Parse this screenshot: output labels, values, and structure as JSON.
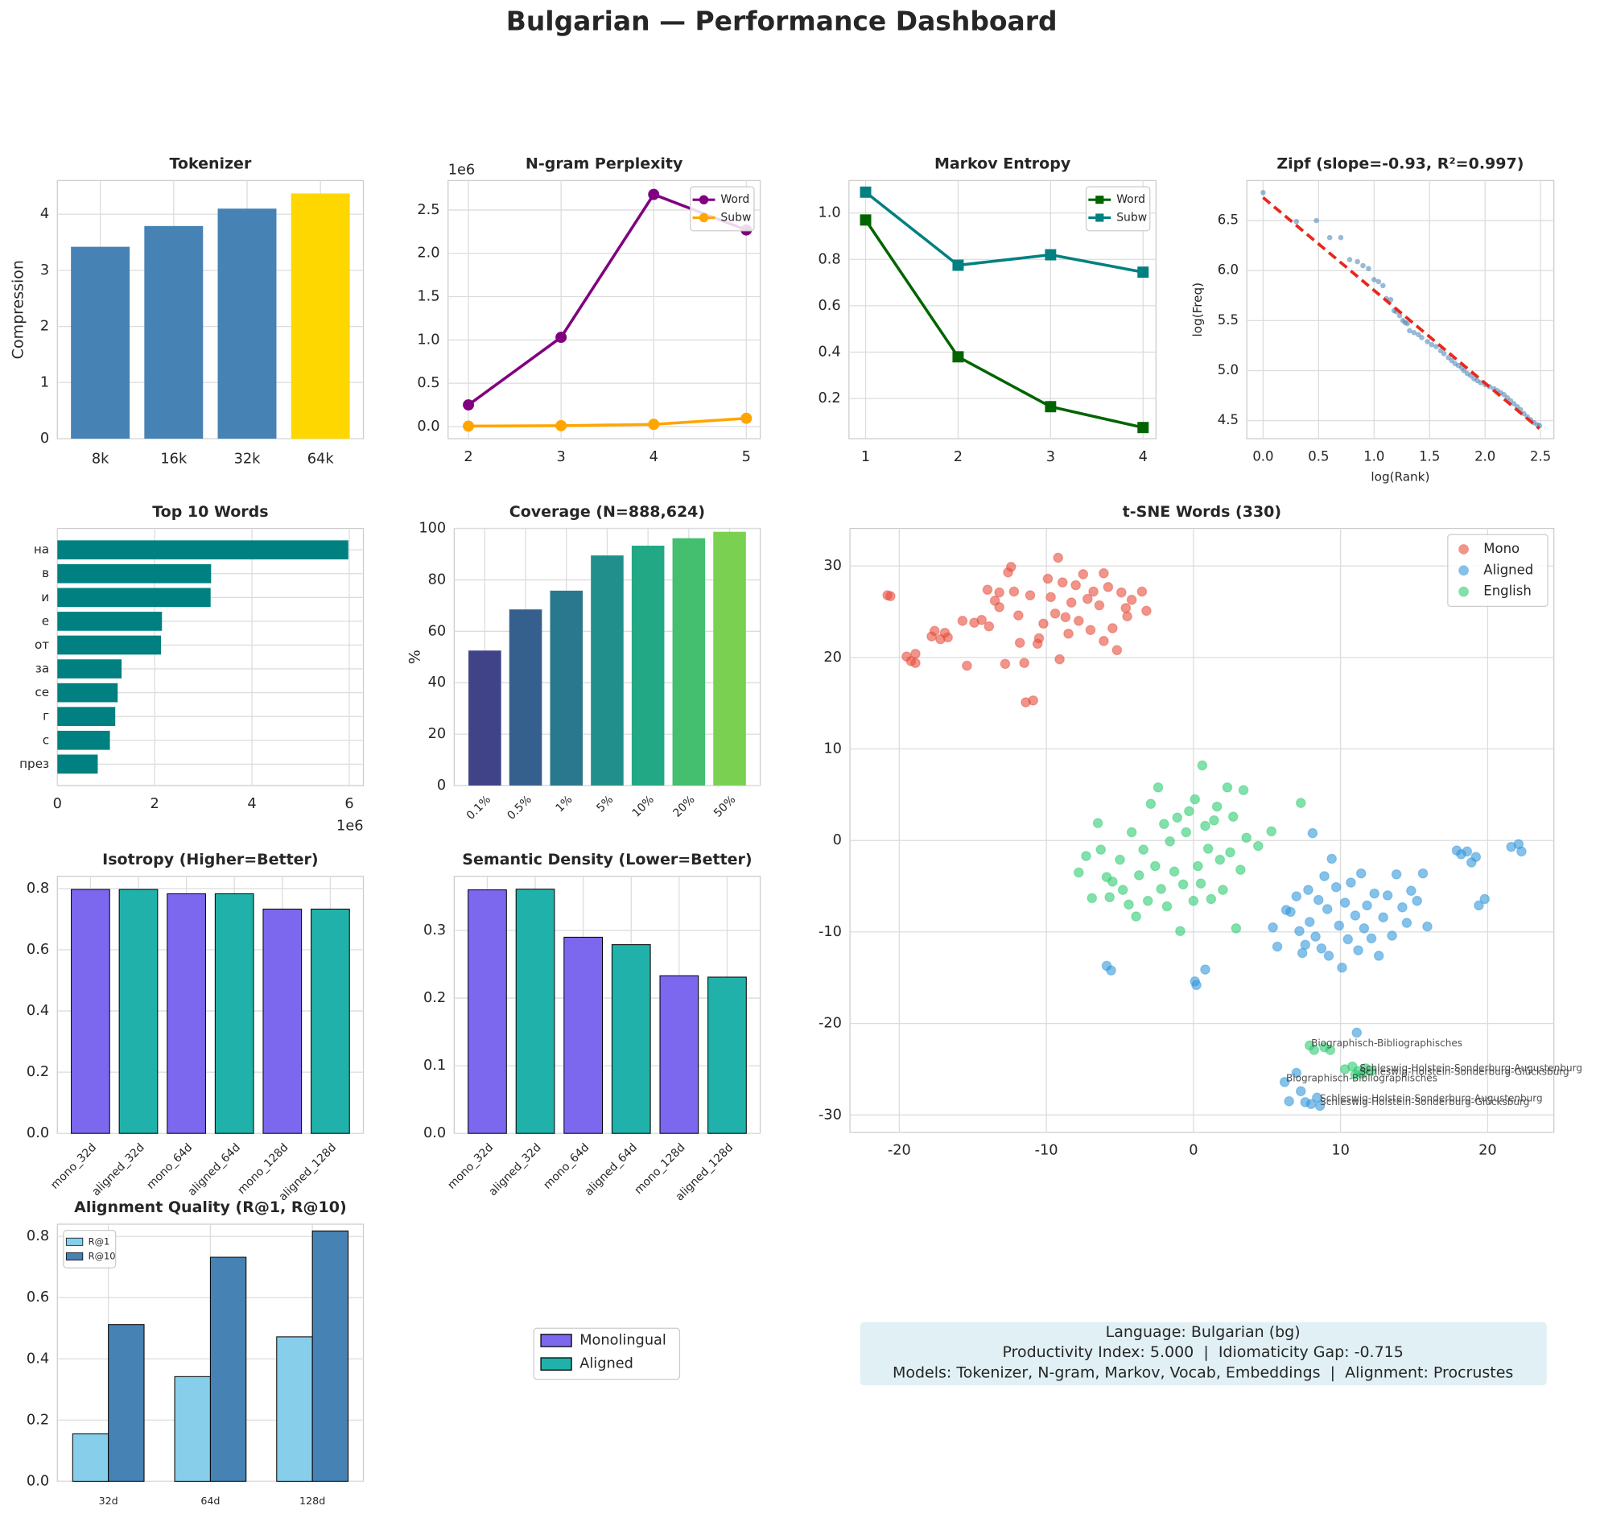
{
  "title": "Bulgarian — Performance Dashboard",
  "chart_data": [
    {
      "type": "bar",
      "title": "Tokenizer",
      "ylabel": "Compression",
      "categories": [
        "8k",
        "16k",
        "32k",
        "64k"
      ],
      "values": [
        3.42,
        3.79,
        4.1,
        4.37
      ],
      "colors": [
        "#4682b4",
        "#4682b4",
        "#4682b4",
        "#ffd700"
      ],
      "ylim": [
        0,
        4.6
      ],
      "yticks": [
        0,
        1,
        2,
        3,
        4
      ],
      "grid": true
    },
    {
      "type": "line",
      "title": "N-gram Perplexity",
      "x": [
        2,
        3,
        4,
        5
      ],
      "xlim": [
        1.78,
        5.15
      ],
      "xticks": [
        2,
        3,
        4,
        5
      ],
      "ylim": [
        -140000,
        2840000
      ],
      "yticks": [
        {
          "value": 0,
          "label": "0.0"
        },
        {
          "value": 500000,
          "label": "0.5"
        },
        {
          "value": 1000000,
          "label": "1.0"
        },
        {
          "value": 1500000,
          "label": "1.5"
        },
        {
          "value": 2000000,
          "label": "2.0"
        },
        {
          "value": 2500000,
          "label": "2.5"
        }
      ],
      "y_offset_label": "1e6",
      "grid": true,
      "legend": "upper right",
      "marker": "circle",
      "series": [
        {
          "name": "Word",
          "color": "#800080",
          "values": [
            250000,
            1030000,
            2680000,
            2270000
          ]
        },
        {
          "name": "Subw",
          "color": "#ffa500",
          "values": [
            5000,
            10000,
            25000,
            95000
          ]
        }
      ]
    },
    {
      "type": "line",
      "title": "Markov Entropy",
      "x": [
        1,
        2,
        3,
        4
      ],
      "xlim": [
        0.82,
        4.14
      ],
      "xticks": [
        1,
        2,
        3,
        4
      ],
      "ylim": [
        0.027,
        1.14
      ],
      "yticks": [
        0.2,
        0.4,
        0.6,
        0.8,
        {
          "value": 1,
          "label": "1.0"
        }
      ],
      "grid": true,
      "legend": "upper right",
      "marker": "square",
      "series": [
        {
          "name": "Word",
          "color": "#006400",
          "values": [
            0.97,
            0.38,
            0.165,
            0.075
          ]
        },
        {
          "name": "Subw",
          "color": "#008080",
          "values": [
            1.09,
            0.775,
            0.82,
            0.745
          ]
        }
      ]
    },
    {
      "type": "scatter",
      "title": "Zipf (slope=-0.93, R²=0.997)",
      "xlabel": "log(Rank)",
      "ylabel": "log(Freq)",
      "xlim": [
        -0.147,
        2.62
      ],
      "ylim": [
        4.32,
        6.9
      ],
      "xticks": [
        {
          "value": 0,
          "label": "0.0"
        },
        0.5,
        {
          "value": 1,
          "label": "1.0"
        },
        1.5,
        {
          "value": 2,
          "label": "2.0"
        },
        2.5
      ],
      "yticks": [
        4.5,
        {
          "value": 5,
          "label": "5.0"
        },
        5.5,
        {
          "value": 6,
          "label": "6.0"
        },
        6.5
      ],
      "grid": true,
      "color": "#4682b4",
      "x": [
        0,
        0.3,
        0.48,
        0.6,
        0.7,
        0.78,
        0.85,
        0.9,
        0.95,
        1.0,
        1.04,
        1.08,
        1.11,
        1.15,
        1.18,
        1.2,
        1.23,
        1.26,
        1.28,
        1.3,
        1.32,
        1.36,
        1.4,
        1.43,
        1.48,
        1.52,
        1.56,
        1.6,
        1.63,
        1.67,
        1.7,
        1.73,
        1.76,
        1.79,
        1.81,
        1.84,
        1.87,
        1.9,
        1.93,
        1.96,
        2.0,
        2.04,
        2.08,
        2.11,
        2.14,
        2.17,
        2.2,
        2.23,
        2.26,
        2.29,
        2.32,
        2.35,
        2.38,
        2.41,
        2.44,
        2.47,
        2.49
      ],
      "y": [
        6.78,
        6.49,
        6.5,
        6.33,
        6.33,
        6.11,
        6.09,
        6.05,
        6.02,
        5.91,
        5.89,
        5.85,
        5.72,
        5.71,
        5.6,
        5.59,
        5.55,
        5.5,
        5.48,
        5.47,
        5.4,
        5.38,
        5.36,
        5.33,
        5.29,
        5.26,
        5.24,
        5.2,
        5.17,
        5.13,
        5.1,
        5.07,
        5.05,
        5.03,
        5.0,
        4.97,
        4.95,
        4.92,
        4.9,
        4.88,
        4.86,
        4.84,
        4.82,
        4.8,
        4.78,
        4.76,
        4.73,
        4.7,
        4.67,
        4.64,
        4.61,
        4.57,
        4.54,
        4.51,
        4.48,
        4.46,
        4.45
      ],
      "fit": {
        "x": [
          0,
          2.49
        ],
        "y": [
          6.73,
          4.42
        ],
        "color": "#e8281e"
      }
    },
    {
      "type": "barh",
      "title": "Top 10 Words",
      "categories": [
        "на",
        "в",
        "и",
        "е",
        "от",
        "за",
        "се",
        "г",
        "с",
        "през"
      ],
      "values": [
        5980000,
        3160000,
        3150000,
        2150000,
        2130000,
        1320000,
        1240000,
        1190000,
        1080000,
        830000
      ],
      "color": "#008080",
      "xlim": [
        0,
        6290000
      ],
      "xticks": [
        {
          "value": 0,
          "label": "0"
        },
        {
          "value": 2000000,
          "label": "2"
        },
        {
          "value": 4000000,
          "label": "4"
        },
        {
          "value": 6000000,
          "label": "6"
        }
      ],
      "x_offset_label": "1e6",
      "grid": true
    },
    {
      "type": "bar",
      "title": "Coverage (N=888,624)",
      "ylabel": "%",
      "categories": [
        "0.1%",
        "0.5%",
        "1%",
        "5%",
        "10%",
        "20%",
        "50%"
      ],
      "values": [
        52.5,
        68.5,
        75.8,
        89.5,
        93.3,
        96.2,
        98.7
      ],
      "colors": [
        "#404387",
        "#355f8d",
        "#2a788e",
        "#21908d",
        "#22a884",
        "#44bf70",
        "#7ad151"
      ],
      "ylim": [
        0,
        100
      ],
      "yticks": [
        0,
        20,
        40,
        60,
        80,
        100
      ],
      "grid": true
    },
    {
      "type": "scatter",
      "title": "t-SNE Words (330)",
      "xlim": [
        -23.35,
        24.5
      ],
      "ylim": [
        -31.9,
        34.1
      ],
      "xticks": [
        -20,
        -10,
        0,
        10,
        20
      ],
      "yticks": [
        -30,
        -20,
        -10,
        0,
        10,
        20,
        30
      ],
      "grid": true,
      "legend": "upper right",
      "series": [
        {
          "name": "Mono",
          "color": "#e74c3c",
          "x": [
            -20.8,
            -20.6,
            -19.5,
            -19.2,
            -18.9,
            -18.9,
            -17.8,
            -17.6,
            -17.2,
            -16.9,
            -16.7,
            -15.4,
            -14.9,
            -14.4,
            -14.0,
            -13.5,
            -13.2,
            -13.2,
            -12.8,
            -12.6,
            -12.4,
            -12.2,
            -11.9,
            -11.8,
            -11.5,
            -11.4,
            -11.1,
            -10.9,
            -10.5,
            -10.2,
            -9.9,
            -9.7,
            -9.4,
            -9.2,
            -9.1,
            -8.9,
            -8.7,
            -8.5,
            -8.3,
            -8.0,
            -7.8,
            -7.5,
            -7.2,
            -7.0,
            -6.8,
            -6.4,
            -6.1,
            -5.8,
            -5.5,
            -5.2,
            -4.9,
            -4.6,
            -4.2,
            -3.5,
            -3.2,
            -4.5,
            -10.6,
            -13.9,
            -15.7,
            -6.1
          ],
          "y": [
            26.8,
            26.7,
            20.1,
            19.6,
            20.4,
            19.4,
            22.3,
            22.9,
            22.0,
            22.7,
            22.2,
            19.1,
            23.8,
            24.1,
            27.4,
            26.2,
            25.5,
            27.1,
            19.3,
            29.3,
            29.9,
            27.2,
            24.6,
            21.6,
            19.4,
            15.1,
            26.8,
            15.3,
            22.1,
            23.7,
            28.6,
            26.6,
            24.8,
            30.9,
            19.8,
            28.2,
            24.4,
            22.6,
            26.0,
            27.9,
            24.0,
            29.1,
            26.4,
            23.0,
            27.2,
            25.7,
            29.2,
            27.7,
            23.2,
            20.8,
            27.1,
            25.4,
            26.3,
            27.2,
            25.1,
            24.5,
            21.5,
            23.4,
            24.0,
            21.8
          ]
        },
        {
          "name": "Aligned",
          "color": "#3498db",
          "x": [
            5.4,
            5.7,
            6.3,
            6.6,
            7.0,
            7.2,
            7.4,
            7.6,
            7.8,
            7.9,
            8.1,
            8.3,
            8.5,
            8.7,
            8.9,
            9.1,
            9.2,
            9.4,
            9.7,
            9.9,
            10.1,
            10.3,
            10.5,
            10.7,
            11.0,
            11.2,
            11.4,
            11.6,
            11.8,
            12.1,
            12.3,
            12.6,
            12.9,
            13.2,
            13.5,
            13.8,
            14.2,
            14.5,
            14.8,
            15.2,
            15.6,
            15.9,
            17.9,
            18.2,
            18.6,
            18.9,
            19.2,
            19.4,
            19.8,
            21.6,
            22.1,
            22.3,
            -5.9,
            -5.6,
            0.1,
            0.2,
            0.8,
            6.2,
            6.5,
            7.0,
            7.3,
            8.0,
            8.4,
            8.6,
            11.1,
            7.6
          ],
          "y": [
            -9.5,
            -11.6,
            -7.6,
            -7.8,
            -6.1,
            -9.9,
            -12.3,
            -11.4,
            -5.4,
            -8.9,
            0.8,
            -10.5,
            -6.5,
            -11.8,
            -3.9,
            -7.5,
            -12.6,
            -2.0,
            -5.1,
            -9.3,
            -13.9,
            -6.8,
            -10.8,
            -4.6,
            -8.2,
            -12.0,
            -3.6,
            -9.6,
            -7.1,
            -10.7,
            -5.8,
            -12.6,
            -8.4,
            -6.0,
            -10.4,
            -3.7,
            -7.3,
            -9.0,
            -5.5,
            -6.6,
            -3.6,
            -9.4,
            -1.1,
            -1.5,
            -1.2,
            -2.4,
            -1.8,
            -7.1,
            -6.4,
            -0.7,
            -0.4,
            -1.2,
            -13.7,
            -14.2,
            -15.4,
            -15.8,
            -14.1,
            -26.4,
            -28.5,
            -25.4,
            -27.4,
            -28.8,
            -28.1,
            -29.0,
            -21.0,
            -28.6
          ]
        },
        {
          "name": "English",
          "color": "#2ecc71",
          "x": [
            -7.8,
            -7.3,
            -6.9,
            -6.5,
            -6.3,
            -5.9,
            -5.7,
            -5.5,
            -5.0,
            -4.8,
            -4.4,
            -4.2,
            -3.9,
            -3.7,
            -3.4,
            -3.1,
            -2.9,
            -2.6,
            -2.4,
            -2.2,
            -2.0,
            -1.8,
            -1.6,
            -1.3,
            -1.1,
            -0.9,
            -0.7,
            -0.5,
            -0.3,
            0.0,
            0.1,
            0.3,
            0.5,
            0.6,
            0.8,
            1.0,
            1.2,
            1.4,
            1.6,
            1.8,
            2.0,
            2.3,
            2.5,
            2.7,
            2.9,
            3.2,
            3.4,
            3.6,
            4.4,
            5.3,
            7.3,
            7.9,
            8.2,
            8.9,
            9.3,
            10.3,
            10.8,
            11.2,
            11.5,
            11.7,
            12.1,
            11.0
          ],
          "y": [
            -3.5,
            -1.7,
            -6.3,
            1.9,
            -1.0,
            -4.0,
            -6.2,
            -4.5,
            -2.1,
            -5.4,
            -7.0,
            0.9,
            -8.3,
            -3.8,
            -1.0,
            -6.6,
            4.0,
            -2.8,
            5.8,
            -5.3,
            1.8,
            -7.2,
            -0.1,
            -3.4,
            2.5,
            -9.9,
            -4.8,
            0.9,
            3.2,
            -6.6,
            4.5,
            -2.8,
            -4.7,
            8.2,
            1.6,
            -0.9,
            -6.4,
            2.2,
            3.7,
            -2.1,
            -5.4,
            5.8,
            -1.3,
            2.6,
            -9.6,
            -3.2,
            5.5,
            0.3,
            -0.6,
            1.0,
            4.1,
            -22.4,
            -22.9,
            -22.6,
            -22.9,
            -25.0,
            -24.7,
            -25.2,
            -25.5,
            -24.9,
            -25.2,
            -25.6
          ]
        }
      ],
      "annotations": [
        {
          "text": "Biographisch-Bibliographisches",
          "x": 8.0,
          "y": -22.2,
          "series": 2
        },
        {
          "text": "Schleswig-Holstein-Sonderburg-Augustenburg",
          "x": 11.3,
          "y": -24.9,
          "series": 2
        },
        {
          "text": "Schleswig-Holstein-Sonderburg-Glücksburg",
          "x": 11.3,
          "y": -25.3,
          "series": 2
        },
        {
          "text": "Biographisch-Bibliographisches",
          "x": 6.3,
          "y": -26.0,
          "series": 1
        },
        {
          "text": "Schleswig-Holstein-Sonderburg-Augustenburg",
          "x": 8.6,
          "y": -28.2,
          "series": 1
        },
        {
          "text": "Schleswig-Holstein-Sonderburg-Glücksburg",
          "x": 8.6,
          "y": -28.6,
          "series": 1
        }
      ]
    },
    {
      "type": "bar",
      "title": "Isotropy (Higher=Better)",
      "categories": [
        "mono_32d",
        "aligned_32d",
        "mono_64d",
        "aligned_64d",
        "mono_128d",
        "aligned_128d"
      ],
      "values": [
        0.797,
        0.797,
        0.783,
        0.783,
        0.733,
        0.733
      ],
      "colors": [
        "#7b68ee",
        "#20b2aa",
        "#7b68ee",
        "#20b2aa",
        "#7b68ee",
        "#20b2aa"
      ],
      "edgecolor": "#000000",
      "ylim": [
        0,
        0.84
      ],
      "yticks": [
        {
          "value": 0,
          "label": "0.0"
        },
        0.2,
        0.4,
        0.6,
        0.8
      ],
      "grid": true
    },
    {
      "type": "bar",
      "title": "Semantic Density (Lower=Better)",
      "categories": [
        "mono_32d",
        "aligned_32d",
        "mono_64d",
        "aligned_64d",
        "mono_128d",
        "aligned_128d"
      ],
      "values": [
        0.36,
        0.361,
        0.29,
        0.279,
        0.233,
        0.231
      ],
      "colors": [
        "#7b68ee",
        "#20b2aa",
        "#7b68ee",
        "#20b2aa",
        "#7b68ee",
        "#20b2aa"
      ],
      "edgecolor": "#000000",
      "ylim": [
        0,
        0.38
      ],
      "yticks": [
        {
          "value": 0,
          "label": "0.0"
        },
        0.1,
        0.2,
        0.3
      ],
      "grid": true
    },
    {
      "type": "grouped_bar",
      "title": "Alignment Quality (R@1, R@10)",
      "categories": [
        "32d",
        "64d",
        "128d"
      ],
      "edgecolor": "#000000",
      "ylim": [
        0,
        0.84
      ],
      "yticks": [
        {
          "value": 0,
          "label": "0.0"
        },
        0.2,
        0.4,
        0.6,
        0.8
      ],
      "grid": true,
      "legend": "upper left",
      "series": [
        {
          "name": "R@1",
          "color": "#87ceeb",
          "values": [
            0.155,
            0.342,
            0.472
          ]
        },
        {
          "name": "R@10",
          "color": "#4682b4",
          "values": [
            0.512,
            0.732,
            0.818
          ]
        }
      ]
    }
  ],
  "bar_legend": [
    {
      "label": "Monolingual",
      "color": "#7b68ee"
    },
    {
      "label": "Aligned",
      "color": "#20b2aa"
    }
  ],
  "info_box": {
    "lines": [
      "Language: Bulgarian (bg)",
      "Productivity Index: 5.000  |  Idiomaticity Gap: -0.715",
      "Models: Tokenizer, N-gram, Markov, Vocab, Embeddings  |  Alignment: Procrustes"
    ]
  }
}
